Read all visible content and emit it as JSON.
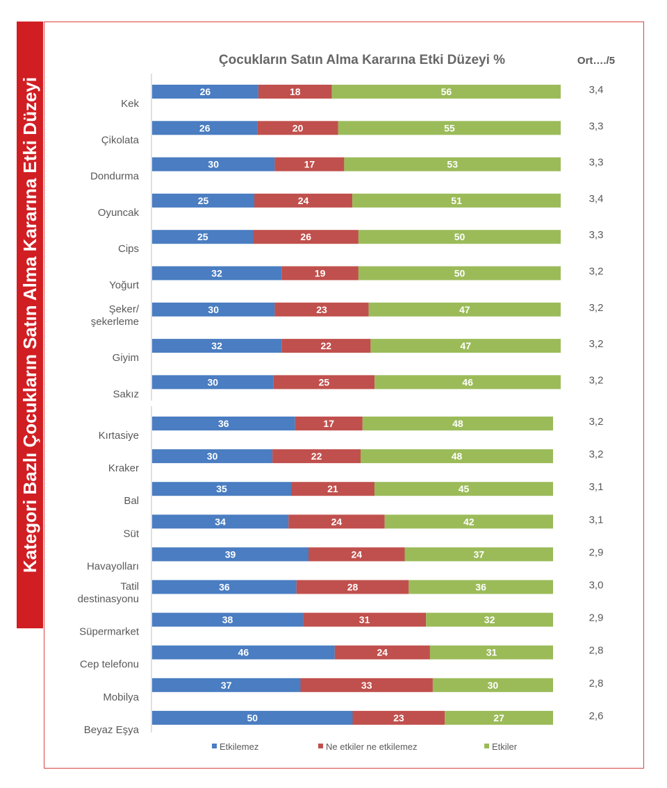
{
  "side_title": "Kategori Bazlı Çocukların Satın Alma Kararına Etki Düzeyi",
  "avg_header": "Ort…./5",
  "colors": {
    "etkilemez": "#4a7dc1",
    "neutral": "#c0504d",
    "etkiler": "#9bbb59",
    "side_title_bg": "#d01e23"
  },
  "chart_data": [
    {
      "type": "bar",
      "orientation": "horizontal-stacked-100",
      "title": "Çocukların Satın Alma Kararına Etki Düzeyi %",
      "categories": [
        "Kek",
        "Çikolata",
        "Dondurma",
        "Oyuncak",
        "Cips",
        "Yoğurt",
        "Şeker/ şekerleme",
        "Giyim",
        "Sakız"
      ],
      "series": [
        {
          "name": "Etkilemez",
          "values": [
            26,
            26,
            30,
            25,
            25,
            32,
            30,
            32,
            30
          ]
        },
        {
          "name": "Ne etkiler ne etkilemez",
          "values": [
            18,
            20,
            17,
            24,
            26,
            19,
            23,
            22,
            25
          ]
        },
        {
          "name": "Etkiler",
          "values": [
            56,
            55,
            53,
            51,
            50,
            50,
            47,
            47,
            46
          ]
        }
      ],
      "averages": [
        "3,4",
        "3,3",
        "3,3",
        "3,4",
        "3,3",
        "3,2",
        "3,2",
        "3,2",
        "3,2"
      ]
    },
    {
      "type": "bar",
      "orientation": "horizontal-stacked-100",
      "categories": [
        "Kırtasiye",
        "Kraker",
        "Bal",
        "Süt",
        "Havayolları",
        "Tatil destinasyonu",
        "Süpermarket",
        "Cep telefonu",
        "Mobilya",
        "Beyaz Eşya"
      ],
      "series": [
        {
          "name": "Etkilemez",
          "values": [
            36,
            30,
            35,
            34,
            39,
            36,
            38,
            46,
            37,
            50
          ]
        },
        {
          "name": "Ne etkiler ne etkilemez",
          "values": [
            17,
            22,
            21,
            24,
            24,
            28,
            31,
            24,
            33,
            23
          ]
        },
        {
          "name": "Etkiler",
          "values": [
            48,
            48,
            45,
            42,
            37,
            36,
            32,
            31,
            30,
            27
          ]
        }
      ],
      "averages": [
        "3,2",
        "3,2",
        "3,1",
        "3,1",
        "2,9",
        "3,0",
        "2,9",
        "2,8",
        "2,8",
        "2,6"
      ],
      "legend": [
        "Etkilemez",
        "Ne etkiler ne etkilemez",
        "Etkiler"
      ],
      "legend_position": "bottom"
    }
  ]
}
